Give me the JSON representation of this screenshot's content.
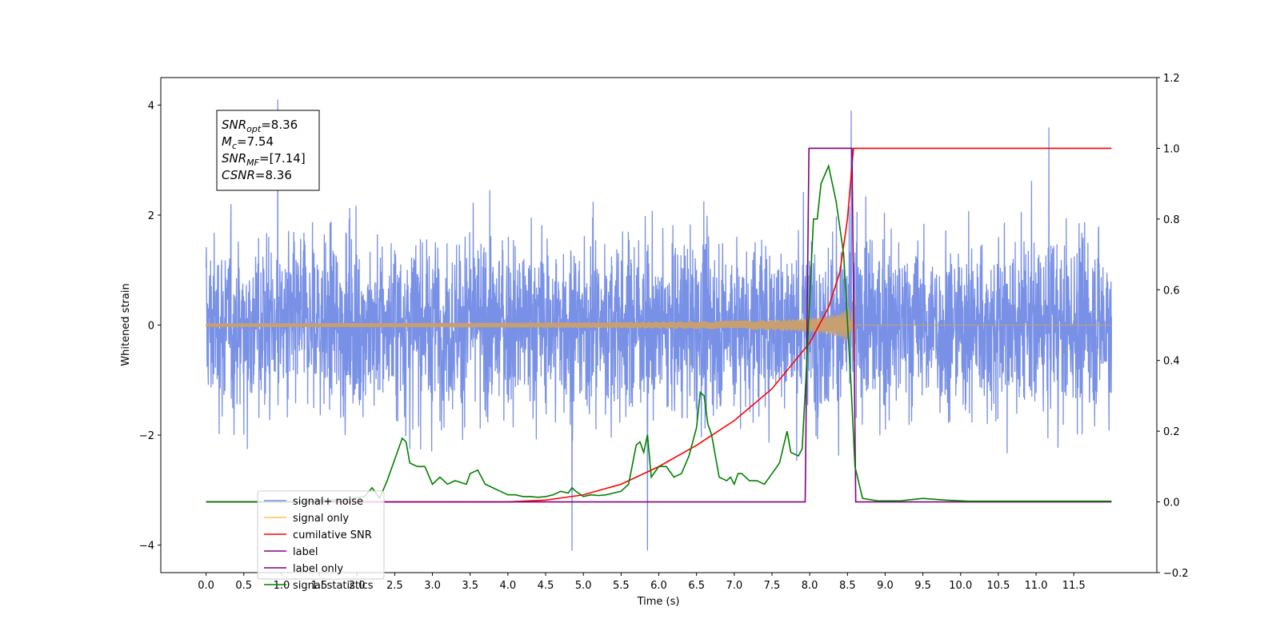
{
  "chart_data": {
    "type": "line",
    "xlabel": "Time (s)",
    "ylabel": "Whitened strain",
    "y2label": "",
    "xlim": [
      -0.6,
      12.6
    ],
    "ylim": [
      -4.5,
      4.5
    ],
    "y2lim": [
      -0.2,
      1.2
    ],
    "x_ticks": [
      "0.0",
      "0.5",
      "1.0",
      "1.5",
      "2.0",
      "2.5",
      "3.0",
      "3.5",
      "4.0",
      "4.5",
      "5.0",
      "5.5",
      "6.0",
      "6.5",
      "7.0",
      "7.5",
      "8.0",
      "8.5",
      "9.0",
      "9.5",
      "10.0",
      "10.5",
      "11.0",
      "11.5"
    ],
    "y_ticks": [
      "4",
      "2",
      "0",
      "−2",
      "−4"
    ],
    "y2_ticks": [
      "1.2",
      "1.0",
      "0.8",
      "0.6",
      "0.4",
      "0.2",
      "0.0",
      "−0.2"
    ],
    "grid": false,
    "legend_position": "lower-left",
    "annotation": [
      {
        "sym": "SNR",
        "sub": "opt",
        "val": "=8.36"
      },
      {
        "sym": "M",
        "sub": "c",
        "val": "=7.54"
      },
      {
        "sym": "SNR",
        "sub": "MF",
        "val": "=[7.14]"
      },
      {
        "sym": "CSNR",
        "sub": "",
        "val": "=8.36"
      }
    ],
    "series": [
      {
        "name": "signal+ noise",
        "axis": "left",
        "color": "#7890e6",
        "kind": "noise",
        "x_range": [
          0.0,
          12.0
        ],
        "envelope": [
          -3.0,
          3.0
        ],
        "notable_spikes": [
          {
            "x": 0.95,
            "y": 4.1
          },
          {
            "x": 8.55,
            "y": 3.9
          },
          {
            "x": 4.85,
            "y": -4.1
          },
          {
            "x": 5.85,
            "y": -4.1
          }
        ]
      },
      {
        "name": "signal only",
        "axis": "left",
        "color": "#c8a070",
        "kind": "chirp",
        "x_range": [
          0.0,
          12.0
        ],
        "peak_amplitude": 0.7,
        "merger_time": 8.6
      },
      {
        "name": "cumilative SNR",
        "axis": "right",
        "color": "#ff0000",
        "points": [
          [
            0,
            0
          ],
          [
            4.0,
            0
          ],
          [
            4.5,
            0.005
          ],
          [
            5.0,
            0.02
          ],
          [
            5.5,
            0.05
          ],
          [
            6.0,
            0.1
          ],
          [
            6.5,
            0.16
          ],
          [
            7.0,
            0.23
          ],
          [
            7.5,
            0.32
          ],
          [
            8.0,
            0.45
          ],
          [
            8.25,
            0.55
          ],
          [
            8.4,
            0.65
          ],
          [
            8.5,
            0.8
          ],
          [
            8.58,
            1.0
          ],
          [
            12.0,
            1.0
          ]
        ]
      },
      {
        "name": "label",
        "axis": "right",
        "color": "#800080",
        "points": [
          [
            0,
            0
          ],
          [
            7.94,
            0
          ],
          [
            7.99,
            1.0
          ],
          [
            8.56,
            1.0
          ],
          [
            8.61,
            0
          ],
          [
            12.0,
            0
          ]
        ]
      },
      {
        "name": "label only",
        "axis": "right",
        "color": "#800080",
        "points": []
      },
      {
        "name": "signal statistics",
        "axis": "right",
        "color": "#008000",
        "points": [
          [
            0,
            0
          ],
          [
            1.3,
            0
          ],
          [
            1.5,
            0.005
          ],
          [
            1.7,
            0.005
          ],
          [
            1.9,
            0.008
          ],
          [
            2.1,
            0.015
          ],
          [
            2.2,
            0.04
          ],
          [
            2.3,
            0.01
          ],
          [
            2.4,
            0.06
          ],
          [
            2.5,
            0.12
          ],
          [
            2.6,
            0.18
          ],
          [
            2.65,
            0.17
          ],
          [
            2.7,
            0.11
          ],
          [
            2.8,
            0.1
          ],
          [
            2.9,
            0.1
          ],
          [
            3.0,
            0.05
          ],
          [
            3.1,
            0.07
          ],
          [
            3.2,
            0.05
          ],
          [
            3.3,
            0.06
          ],
          [
            3.45,
            0.05
          ],
          [
            3.5,
            0.08
          ],
          [
            3.6,
            0.09
          ],
          [
            3.7,
            0.05
          ],
          [
            3.8,
            0.04
          ],
          [
            3.9,
            0.03
          ],
          [
            4.0,
            0.02
          ],
          [
            4.1,
            0.02
          ],
          [
            4.2,
            0.015
          ],
          [
            4.3,
            0.015
          ],
          [
            4.4,
            0.013
          ],
          [
            4.5,
            0.015
          ],
          [
            4.6,
            0.02
          ],
          [
            4.7,
            0.03
          ],
          [
            4.8,
            0.025
          ],
          [
            4.85,
            0.04
          ],
          [
            4.9,
            0.03
          ],
          [
            5.0,
            0.015
          ],
          [
            5.1,
            0.02
          ],
          [
            5.2,
            0.018
          ],
          [
            5.3,
            0.02
          ],
          [
            5.4,
            0.025
          ],
          [
            5.5,
            0.03
          ],
          [
            5.6,
            0.05
          ],
          [
            5.7,
            0.16
          ],
          [
            5.75,
            0.17
          ],
          [
            5.8,
            0.14
          ],
          [
            5.85,
            0.19
          ],
          [
            5.9,
            0.07
          ],
          [
            6.0,
            0.1
          ],
          [
            6.1,
            0.1
          ],
          [
            6.2,
            0.07
          ],
          [
            6.3,
            0.08
          ],
          [
            6.4,
            0.13
          ],
          [
            6.5,
            0.21
          ],
          [
            6.55,
            0.31
          ],
          [
            6.6,
            0.3
          ],
          [
            6.65,
            0.22
          ],
          [
            6.7,
            0.19
          ],
          [
            6.8,
            0.07
          ],
          [
            6.9,
            0.06
          ],
          [
            6.95,
            0.07
          ],
          [
            7.0,
            0.05
          ],
          [
            7.05,
            0.08
          ],
          [
            7.1,
            0.08
          ],
          [
            7.2,
            0.06
          ],
          [
            7.3,
            0.06
          ],
          [
            7.4,
            0.05
          ],
          [
            7.5,
            0.08
          ],
          [
            7.6,
            0.11
          ],
          [
            7.7,
            0.2
          ],
          [
            7.75,
            0.14
          ],
          [
            7.85,
            0.13
          ],
          [
            7.9,
            0.15
          ],
          [
            7.95,
            0.35
          ],
          [
            8.05,
            0.8
          ],
          [
            8.1,
            0.8
          ],
          [
            8.15,
            0.9
          ],
          [
            8.25,
            0.95
          ],
          [
            8.35,
            0.85
          ],
          [
            8.45,
            0.7
          ],
          [
            8.55,
            0.32
          ],
          [
            8.6,
            0.1
          ],
          [
            8.7,
            0.01
          ],
          [
            8.9,
            0.003
          ],
          [
            9.2,
            0.003
          ],
          [
            9.5,
            0.01
          ],
          [
            9.8,
            0.005
          ],
          [
            10.1,
            0.002
          ],
          [
            12.0,
            0.002
          ]
        ]
      }
    ]
  }
}
